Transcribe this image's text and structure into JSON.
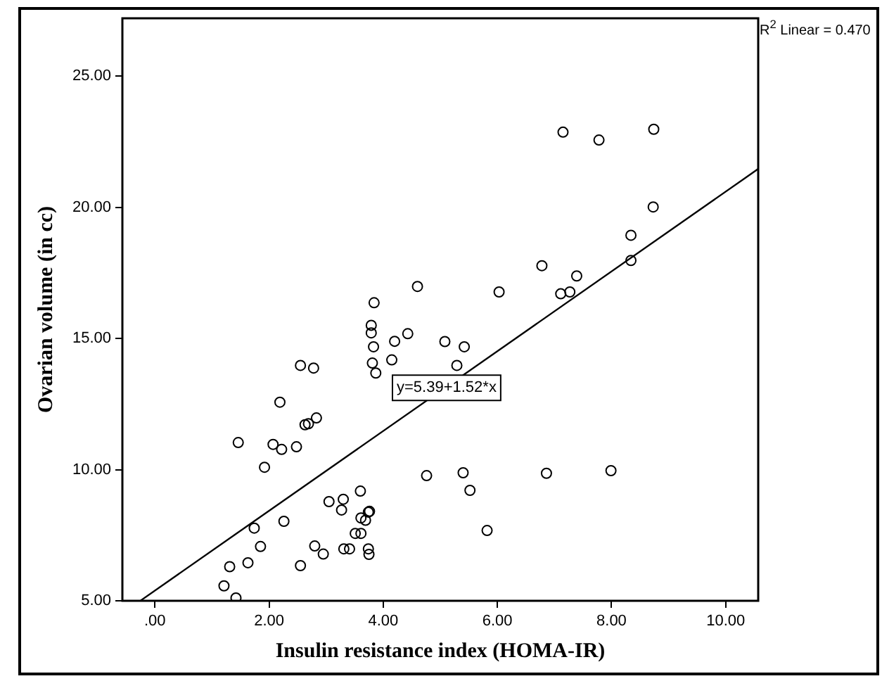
{
  "chart_data": {
    "type": "scatter",
    "xlabel": "Insulin resistance index (HOMA-IR)",
    "ylabel": "Ovarian volume (in cc)",
    "xlim": [
      -0.57,
      10.57
    ],
    "ylim": [
      5,
      27.2
    ],
    "xticks": [
      {
        "value": 0,
        "label": ".00"
      },
      {
        "value": 2,
        "label": "2.00"
      },
      {
        "value": 4,
        "label": "4.00"
      },
      {
        "value": 6,
        "label": "6.00"
      },
      {
        "value": 8,
        "label": "8.00"
      },
      {
        "value": 10,
        "label": "10.00"
      }
    ],
    "yticks": [
      {
        "value": 5,
        "label": "5.00"
      },
      {
        "value": 10,
        "label": "10.00"
      },
      {
        "value": 15,
        "label": "15.00"
      },
      {
        "value": 20,
        "label": "20.00"
      },
      {
        "value": 25,
        "label": "25.00"
      }
    ],
    "grid": false,
    "legend": false,
    "annotations": [
      "R$^{2}$ Linear = 0.470",
      {
        "text": "y=5.39+1.52*x",
        "x": 5.11,
        "y": 13.12
      }
    ],
    "series": [
      {
        "type": "scatter",
        "color": "#000000",
        "marker": "circle",
        "x": [
          3.84,
          3.79,
          3.79,
          3.83,
          3.81,
          3.87,
          4.2,
          4.43,
          4.15,
          5.08,
          5.42,
          5.29,
          2.55,
          2.78,
          2.19,
          2.83,
          2.63,
          2.69,
          1.46,
          2.07,
          2.22,
          2.48,
          1.92,
          4.76,
          5.4,
          5.52,
          5.82,
          3.05,
          3.3,
          3.27,
          3.6,
          3.61,
          3.74,
          3.76,
          3.69,
          3.51,
          3.61,
          3.31,
          3.41,
          3.74,
          3.75,
          2.8,
          2.95,
          2.26,
          1.74,
          1.85,
          1.63,
          1.31,
          2.55,
          1.21,
          1.42,
          4.6,
          6.03,
          7.15,
          7.78,
          8.74,
          8.73,
          8.34,
          8.34,
          6.78,
          7.39,
          7.11,
          7.27,
          6.86,
          7.99
        ],
        "values": [
          16.36,
          15.5,
          15.21,
          14.68,
          14.06,
          13.68,
          14.89,
          15.18,
          14.18,
          14.88,
          14.68,
          13.97,
          13.97,
          13.87,
          12.57,
          11.97,
          11.71,
          11.75,
          11.03,
          10.96,
          10.77,
          10.87,
          10.09,
          9.77,
          9.88,
          9.21,
          7.68,
          8.78,
          8.87,
          8.46,
          9.18,
          8.16,
          8.38,
          8.41,
          8.07,
          7.57,
          7.57,
          6.98,
          6.98,
          6.98,
          6.77,
          7.09,
          6.78,
          8.03,
          7.77,
          7.07,
          6.45,
          6.3,
          6.34,
          5.57,
          5.11,
          16.98,
          16.77,
          22.86,
          22.56,
          22.97,
          20.01,
          18.93,
          17.97,
          17.77,
          17.38,
          16.7,
          16.77,
          9.86,
          9.96
        ]
      },
      {
        "type": "line",
        "color": "#000000",
        "marker": "none",
        "line_style": "solid",
        "x": [
          -0.25,
          10.57
        ],
        "values": [
          5.01,
          21.46
        ]
      }
    ]
  }
}
